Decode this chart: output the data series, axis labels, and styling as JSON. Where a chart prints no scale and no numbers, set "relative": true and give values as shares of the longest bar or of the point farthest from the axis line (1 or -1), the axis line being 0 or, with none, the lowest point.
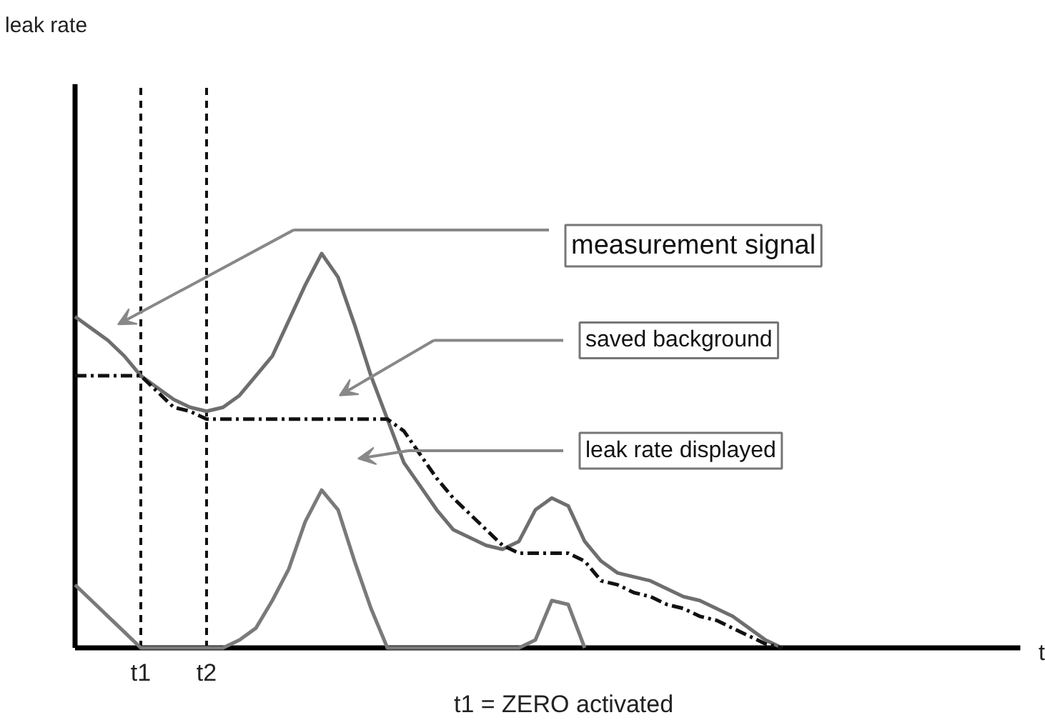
{
  "chart_data": {
    "type": "line",
    "relative": true,
    "xlabel": "t",
    "categories": [
      null,
      null,
      null,
      null,
      "t1",
      null,
      null,
      null,
      "t2",
      null,
      null,
      null,
      null,
      null,
      null,
      null,
      null,
      null,
      null,
      null,
      null,
      null,
      null,
      null,
      null,
      null,
      null,
      null,
      null,
      null,
      null,
      null,
      null,
      null,
      null,
      null,
      null,
      null,
      null,
      null,
      null,
      null,
      null,
      null,
      null,
      null,
      null,
      null,
      null,
      null,
      null,
      null,
      null,
      null,
      null,
      null,
      null,
      null
    ],
    "marker": "none",
    "series": [
      {
        "color": "#6e6e6e",
        "line_style": "solid",
        "values": [
          0.84,
          0.81,
          0.78,
          0.74,
          0.69,
          0.66,
          0.63,
          0.61,
          0.6,
          0.61,
          0.64,
          0.69,
          0.74,
          0.83,
          0.92,
          1,
          0.94,
          0.82,
          0.69,
          0.58,
          0.47,
          0.41,
          0.35,
          0.3,
          0.28,
          0.26,
          0.25,
          0.27,
          0.35,
          0.38,
          0.36,
          0.27,
          0.22,
          0.19,
          0.18,
          0.17,
          0.15,
          0.13,
          0.12,
          0.1,
          0.08,
          0.05,
          0.02,
          0,
          null,
          null,
          null,
          null,
          null,
          null,
          null,
          null,
          null,
          null,
          null,
          null,
          null,
          null
        ]
      },
      {
        "color": "#111111",
        "line_style": "dashed",
        "values": [
          0.69,
          0.69,
          0.69,
          0.69,
          0.69,
          0.65,
          0.61,
          0.6,
          0.58,
          0.58,
          0.58,
          0.58,
          0.58,
          0.58,
          0.58,
          0.58,
          0.58,
          0.58,
          0.58,
          0.58,
          0.55,
          0.49,
          0.43,
          0.38,
          0.34,
          0.3,
          0.26,
          0.24,
          0.24,
          0.24,
          0.24,
          0.22,
          0.17,
          0.16,
          0.14,
          0.13,
          0.11,
          0.1,
          0.08,
          0.07,
          0.05,
          0.03,
          0.01,
          0,
          null,
          null,
          null,
          null,
          null,
          null,
          null,
          null,
          null,
          null,
          null,
          null,
          null,
          null
        ]
      },
      {
        "color": "#7a7a7a",
        "line_style": "solid",
        "values": [
          0.16,
          0.12,
          0.08,
          0.04,
          0,
          0,
          0,
          0,
          0,
          0,
          0.02,
          0.05,
          0.12,
          0.2,
          0.32,
          0.4,
          0.35,
          0.22,
          0.1,
          0,
          0,
          0,
          0,
          0,
          0,
          0,
          0,
          0,
          0.02,
          0.12,
          0.11,
          0,
          null,
          null,
          null,
          null,
          null,
          null,
          null,
          null,
          null,
          null,
          null,
          null,
          null,
          null,
          null,
          null,
          null,
          null,
          null,
          null,
          null,
          null,
          null,
          null,
          null,
          null
        ]
      }
    ],
    "ref_lines": [
      {
        "axis": "x",
        "value": "t1",
        "color": "#111111",
        "line_style": "dashed"
      },
      {
        "axis": "x",
        "value": "t2",
        "color": "#111111",
        "line_style": "dashed"
      }
    ],
    "annotations": [
      "leak rate",
      "measurement signal",
      "saved background",
      "leak rate displayed",
      "t1 = ZERO activated"
    ]
  }
}
